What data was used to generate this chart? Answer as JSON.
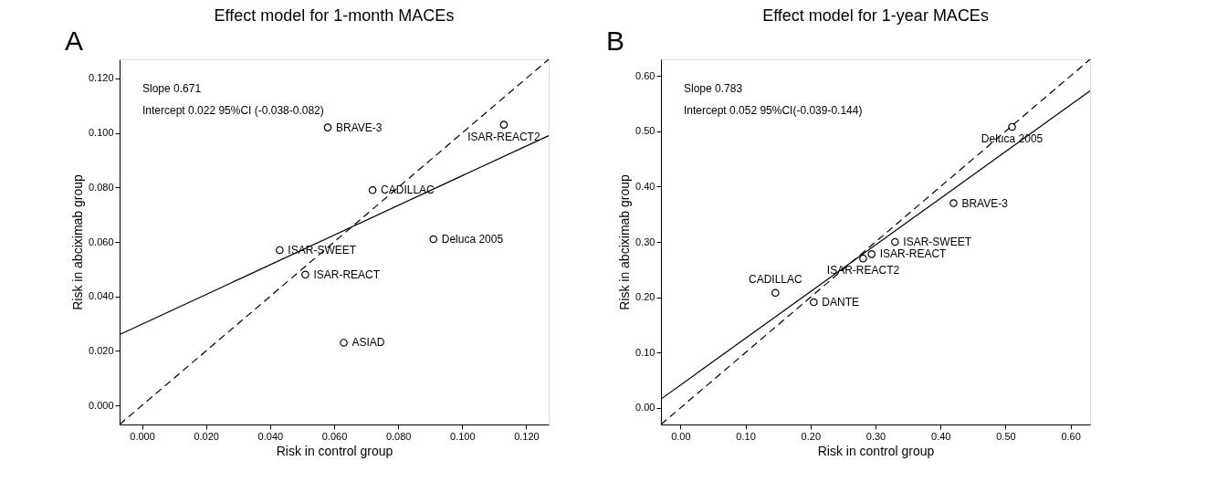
{
  "chart_data": [
    {
      "type": "scatter",
      "title": "Effect model for 1-month MACEs",
      "xlabel": "Risk in control group",
      "ylabel": "Risk in abciximab group",
      "xlim": [
        -0.007,
        0.127
      ],
      "ylim": [
        -0.007,
        0.127
      ],
      "xticks": [
        {
          "value": 0,
          "label": "0.000"
        },
        {
          "value": 0.02,
          "label": "0.020"
        },
        {
          "value": 0.04,
          "label": "0.040"
        },
        {
          "value": 0.06,
          "label": "0.060"
        },
        {
          "value": 0.08,
          "label": "0.080"
        },
        {
          "value": 0.1,
          "label": "0.100"
        },
        {
          "value": 0.12,
          "label": "0.120"
        }
      ],
      "yticks": [
        {
          "value": 0,
          "label": "0.000"
        },
        {
          "value": 0.02,
          "label": "0.020"
        },
        {
          "value": 0.04,
          "label": "0.040"
        },
        {
          "value": 0.06,
          "label": "0.060"
        },
        {
          "value": 0.08,
          "label": "0.080"
        },
        {
          "value": 0.1,
          "label": "0.100"
        },
        {
          "value": 0.12,
          "label": "0.120"
        }
      ],
      "grid": false,
      "series": [
        {
          "marker": "circle",
          "color": "#000000",
          "x": [
            0.058,
            0.113,
            0.072,
            0.091,
            0.043,
            0.051,
            0.063
          ],
          "values": [
            0.102,
            0.103,
            0.079,
            0.061,
            0.057,
            0.048,
            0.023
          ]
        },
        {
          "type": "line",
          "line_style": "solid",
          "color": "#000000",
          "x": [
            -0.007,
            0.127
          ],
          "values": [
            0.026,
            0.099
          ]
        },
        {
          "type": "line",
          "line_style": "dashed",
          "color": "#000000",
          "x": [
            -0.007,
            0.127
          ],
          "values": [
            -0.007,
            0.127
          ]
        }
      ],
      "annotations": [
        "A",
        "Slope 0.671",
        "Intercept 0.022 95%CI (-0.038-0.082)",
        {
          "text": "BRAVE-3",
          "x": 0.058,
          "y": 0.102
        },
        {
          "text": "ISAR-REACT2",
          "x": 0.113,
          "y": 0.103
        },
        {
          "text": "CADILLAC",
          "x": 0.072,
          "y": 0.079
        },
        {
          "text": "Deluca 2005",
          "x": 0.091,
          "y": 0.061
        },
        {
          "text": "ISAR-SWEET",
          "x": 0.043,
          "y": 0.057
        },
        {
          "text": "ISAR-REACT",
          "x": 0.051,
          "y": 0.048
        },
        {
          "text": "ASIAD",
          "x": 0.063,
          "y": 0.023
        }
      ]
    },
    {
      "type": "scatter",
      "title": "Effect model for 1-year MACEs",
      "xlabel": "Risk in control group",
      "ylabel": "Risk in abciximab group",
      "xlim": [
        -0.03,
        0.63
      ],
      "ylim": [
        -0.03,
        0.63
      ],
      "xticks": [
        {
          "value": 0,
          "label": "0.00"
        },
        {
          "value": 0.1,
          "label": "0.10"
        },
        {
          "value": 0.2,
          "label": "0.20"
        },
        {
          "value": 0.3,
          "label": "0.30"
        },
        {
          "value": 0.4,
          "label": "0.40"
        },
        {
          "value": 0.5,
          "label": "0.50"
        },
        {
          "value": 0.6,
          "label": "0.60"
        }
      ],
      "yticks": [
        {
          "value": 0,
          "label": "0.00"
        },
        {
          "value": 0.1,
          "label": "0.10"
        },
        {
          "value": 0.2,
          "label": "0.20"
        },
        {
          "value": 0.3,
          "label": "0.30"
        },
        {
          "value": 0.4,
          "label": "0.40"
        },
        {
          "value": 0.5,
          "label": "0.50"
        },
        {
          "value": 0.6,
          "label": "0.60"
        }
      ],
      "grid": false,
      "series": [
        {
          "marker": "circle",
          "color": "#000000",
          "x": [
            0.51,
            0.42,
            0.33,
            0.294,
            0.281,
            0.146,
            0.205
          ],
          "values": [
            0.508,
            0.37,
            0.3,
            0.278,
            0.27,
            0.208,
            0.191
          ]
        },
        {
          "type": "line",
          "line_style": "solid",
          "color": "#000000",
          "x": [
            -0.03,
            0.63
          ],
          "values": [
            0.016,
            0.573
          ]
        },
        {
          "type": "line",
          "line_style": "dashed",
          "color": "#000000",
          "x": [
            -0.03,
            0.63
          ],
          "values": [
            -0.03,
            0.63
          ]
        }
      ],
      "annotations": [
        "B",
        "Slope 0.783",
        "Intercept 0.052 95%CI(-0.039-0.144)",
        {
          "text": "Deluca 2005",
          "x": 0.51,
          "y": 0.508
        },
        {
          "text": "BRAVE-3",
          "x": 0.42,
          "y": 0.37
        },
        {
          "text": "ISAR-SWEET",
          "x": 0.33,
          "y": 0.3
        },
        {
          "text": "ISAR-REACT",
          "x": 0.294,
          "y": 0.278
        },
        {
          "text": "ISAR-REACT2",
          "x": 0.281,
          "y": 0.27
        },
        {
          "text": "CADILLAC",
          "x": 0.146,
          "y": 0.208
        },
        {
          "text": "DANTE",
          "x": 0.205,
          "y": 0.191
        }
      ]
    }
  ]
}
